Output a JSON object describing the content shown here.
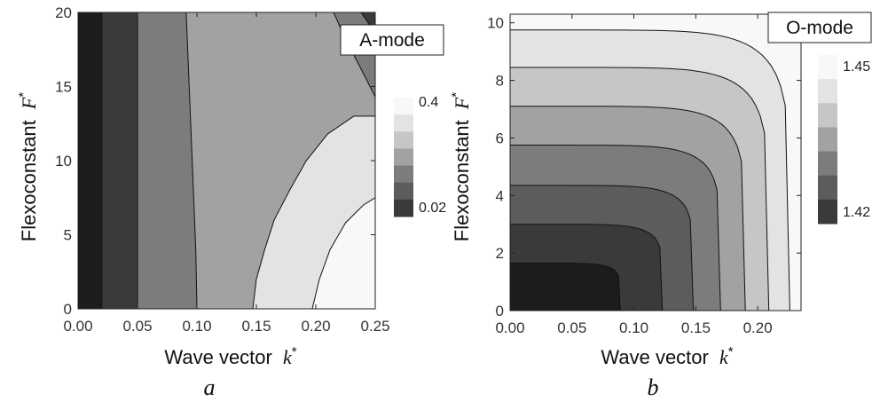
{
  "chart_data": [
    {
      "type": "heatmap",
      "subtype": "contour",
      "panel_caption": "a",
      "mode_label": "A-mode",
      "xlabel": "Wave vector",
      "xlabel_symbol": "k",
      "ylabel": "Flexoconstant",
      "ylabel_symbol": "F",
      "superscript": "*",
      "xlim": [
        0.0,
        0.25
      ],
      "ylim": [
        0,
        20
      ],
      "xticks": [
        "0.00",
        "0.05",
        "0.10",
        "0.15",
        "0.20",
        "0.25"
      ],
      "yticks": [
        "0",
        "5",
        "10",
        "15",
        "20"
      ],
      "legend_labels": {
        "top": "0.4",
        "bottom": "0.02"
      },
      "band_colors": [
        "#1c1c1c",
        "#3a3a3a",
        "#5c5c5c",
        "#7c7c7c",
        "#a2a2a2",
        "#c6c6c6",
        "#e3e3e3",
        "#f8f8f8"
      ],
      "contours_x_at_F": [
        {
          "F": [
            0,
            20
          ],
          "k": [
            0.02,
            0.02
          ]
        },
        {
          "F": [
            0,
            20
          ],
          "k": [
            0.05,
            0.05
          ]
        },
        {
          "F": [
            0,
            4,
            8,
            12,
            16,
            20
          ],
          "k": [
            0.1,
            0.099,
            0.097,
            0.095,
            0.093,
            0.091
          ]
        }
      ],
      "contours_xy": [
        {
          "k": [
            0.147,
            0.15,
            0.157,
            0.165,
            0.178,
            0.192,
            0.21,
            0.232,
            0.25
          ],
          "F": [
            0,
            2,
            4,
            6,
            8,
            10,
            11.8,
            13,
            13
          ]
        },
        {
          "k": [
            0.197,
            0.203,
            0.212,
            0.225,
            0.24,
            0.25
          ],
          "F": [
            0,
            2,
            4,
            5.8,
            7,
            7.5
          ]
        },
        {
          "k": [
            0.215,
            0.225,
            0.238,
            0.25
          ],
          "F": [
            20,
            18.2,
            16.2,
            14.3
          ]
        },
        {
          "k": [
            0.238,
            0.244,
            0.25
          ],
          "F": [
            20,
            19.3,
            18.6
          ]
        }
      ]
    },
    {
      "type": "heatmap",
      "subtype": "contour",
      "panel_caption": "b",
      "mode_label": "O-mode",
      "xlabel": "Wave vector",
      "xlabel_symbol": "k",
      "ylabel": "Flexoconstant",
      "ylabel_symbol": "F",
      "superscript": "*",
      "xlim": [
        0.0,
        0.235
      ],
      "ylim": [
        0,
        10.3
      ],
      "xticks": [
        "0.00",
        "0.05",
        "0.10",
        "0.15",
        "0.20"
      ],
      "yticks": [
        "0",
        "2",
        "4",
        "6",
        "8",
        "10"
      ],
      "legend_labels": {
        "top": "1.45",
        "bottom": "1.42"
      },
      "band_colors": [
        "#1c1c1c",
        "#3a3a3a",
        "#5c5c5c",
        "#7c7c7c",
        "#a2a2a2",
        "#c6c6c6",
        "#e3e3e3",
        "#f8f8f8"
      ],
      "level_curves": [
        {
          "F0": 1.65,
          "k0": 0.089
        },
        {
          "F0": 3.0,
          "k0": 0.123
        },
        {
          "F0": 4.35,
          "k0": 0.148
        },
        {
          "F0": 5.75,
          "k0": 0.17
        },
        {
          "F0": 7.1,
          "k0": 0.19
        },
        {
          "F0": 8.45,
          "k0": 0.209
        },
        {
          "F0": 9.75,
          "k0": 0.226
        }
      ]
    }
  ]
}
